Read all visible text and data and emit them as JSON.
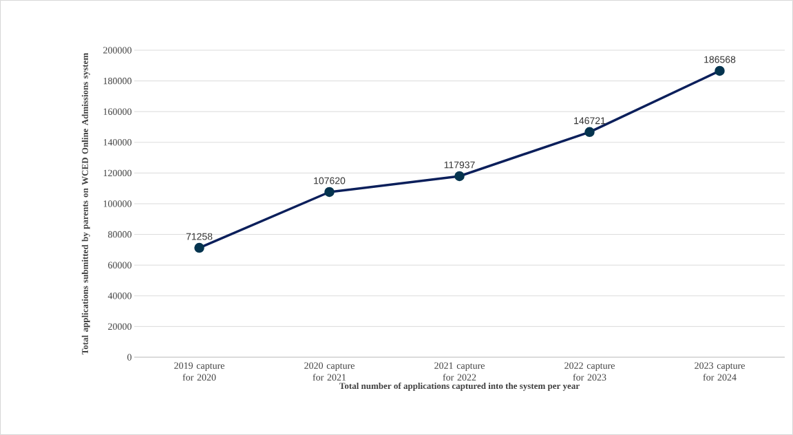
{
  "chart_data": {
    "type": "line",
    "xlabel": "Total number  of applications  captured into the system per year",
    "ylabel": "Total applications  submitted  by parents on WCED Online Admissions  system",
    "categories": [
      "2019 capture for 2020",
      "2020 capture for 2021",
      "2021 capture for 2022",
      "2022 capture for 2023",
      "2023 capture for 2024"
    ],
    "series": [
      {
        "color": "#0b1f5b",
        "values": [
          71258,
          107620,
          117937,
          146721,
          186568
        ]
      }
    ],
    "ylim": [
      0,
      200000
    ],
    "yticks": [
      0,
      20000,
      40000,
      60000,
      80000,
      100000,
      120000,
      140000,
      160000,
      180000,
      200000
    ],
    "grid": "y",
    "marker": "circle",
    "line_style": "solid",
    "data_labels": true
  }
}
